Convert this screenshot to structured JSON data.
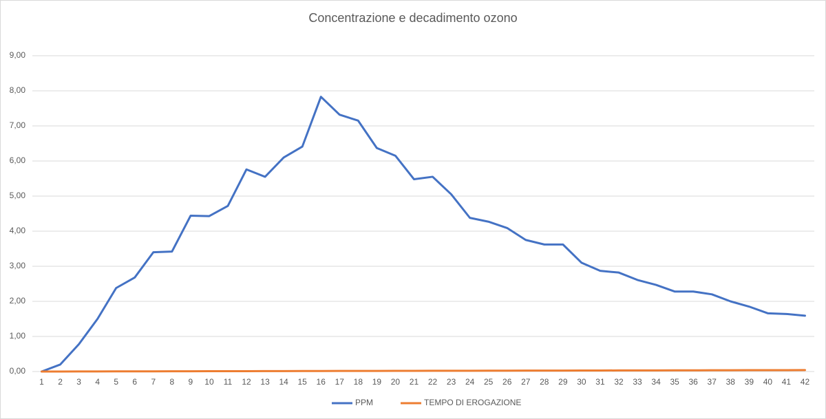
{
  "chart_data": {
    "type": "line",
    "title": "Concentrazione e decadimento ozono",
    "categories": [
      "1",
      "2",
      "3",
      "4",
      "5",
      "6",
      "7",
      "8",
      "9",
      "10",
      "11",
      "12",
      "13",
      "14",
      "15",
      "16",
      "17",
      "18",
      "19",
      "20",
      "21",
      "22",
      "23",
      "24",
      "25",
      "26",
      "27",
      "28",
      "29",
      "30",
      "31",
      "32",
      "33",
      "34",
      "35",
      "36",
      "37",
      "38",
      "39",
      "40",
      "41",
      "42"
    ],
    "series": [
      {
        "name": "PPM",
        "color": "#4472c4",
        "values": [
          0.0,
          0.2,
          0.78,
          1.5,
          2.38,
          2.68,
          3.4,
          3.42,
          4.44,
          4.43,
          4.72,
          5.76,
          5.55,
          6.1,
          6.41,
          7.83,
          7.32,
          7.15,
          6.37,
          6.15,
          5.48,
          5.55,
          5.05,
          4.38,
          4.27,
          4.09,
          3.75,
          3.62,
          3.62,
          3.1,
          2.87,
          2.82,
          2.61,
          2.47,
          2.28,
          2.28,
          2.2,
          2.0,
          1.85,
          1.66,
          1.64,
          1.59
        ]
      },
      {
        "name": "TEMPO DI EROGAZIONE",
        "color": "#ed7d31",
        "values": [
          0.0,
          0.001,
          0.002,
          0.003,
          0.004,
          0.005,
          0.006,
          0.007,
          0.008,
          0.009,
          0.01,
          0.011,
          0.012,
          0.013,
          0.014,
          0.015,
          0.016,
          0.017,
          0.018,
          0.019,
          0.02,
          0.021,
          0.022,
          0.023,
          0.024,
          0.025,
          0.026,
          0.027,
          0.028,
          0.029,
          0.03,
          0.031,
          0.032,
          0.033,
          0.034,
          0.035,
          0.036,
          0.037,
          0.038,
          0.039,
          0.04,
          0.041
        ]
      }
    ],
    "ylim": [
      0,
      9
    ],
    "yticks": [
      {
        "value": 0,
        "label": "0,00"
      },
      {
        "value": 1,
        "label": "1,00"
      },
      {
        "value": 2,
        "label": "2,00"
      },
      {
        "value": 3,
        "label": "3,00"
      },
      {
        "value": 4,
        "label": "4,00"
      },
      {
        "value": 5,
        "label": "5,00"
      },
      {
        "value": 6,
        "label": "6,00"
      },
      {
        "value": 7,
        "label": "7,00"
      },
      {
        "value": 8,
        "label": "8,00"
      },
      {
        "value": 9,
        "label": "9,00"
      }
    ],
    "grid": true,
    "legend": "bottom"
  }
}
